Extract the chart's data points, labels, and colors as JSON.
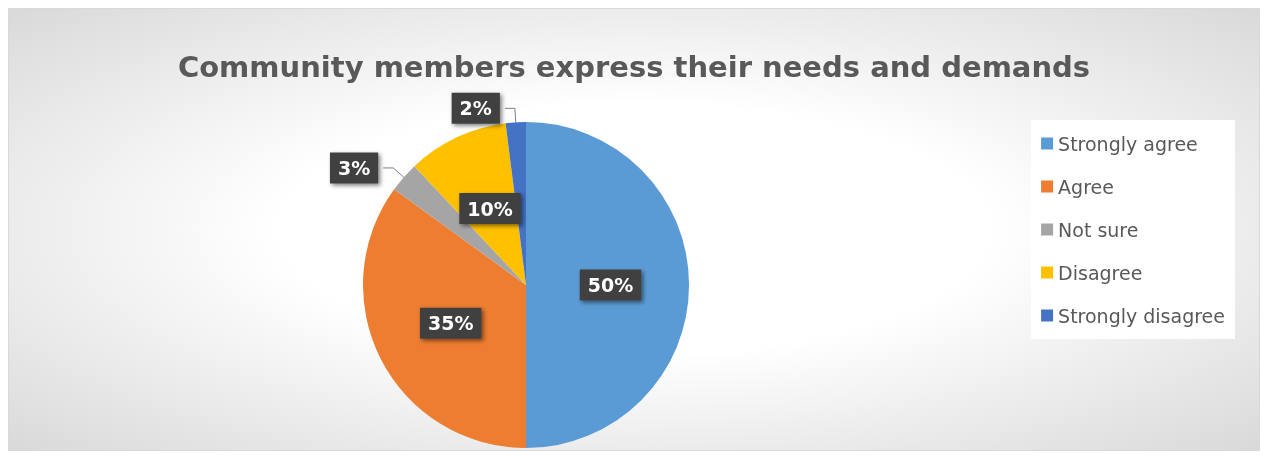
{
  "chart_data": {
    "type": "pie",
    "title": "Community members express their needs and demands",
    "categories": [
      "Strongly agree",
      "Agree",
      "Not sure",
      "Disagree",
      "Strongly disagree"
    ],
    "values": [
      50,
      35,
      3,
      10,
      2
    ],
    "colors": [
      "#5b9bd5",
      "#ed7d31",
      "#a5a5a5",
      "#ffc000",
      "#4472c4"
    ],
    "value_labels": [
      "50%",
      "35%",
      "3%",
      "10%",
      "2%"
    ],
    "legend": "right"
  }
}
